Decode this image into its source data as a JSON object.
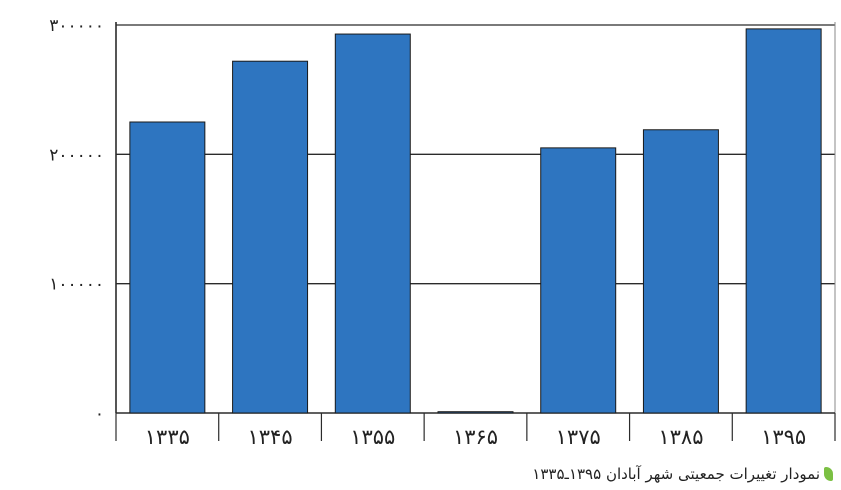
{
  "chart_data": {
    "type": "bar",
    "categories": [
      "۱۳۳۵",
      "۱۳۴۵",
      "۱۳۵۵",
      "۱۳۶۵",
      "۱۳۷۵",
      "۱۳۸۵",
      "۱۳۹۵"
    ],
    "values": [
      225000,
      272000,
      293000,
      1000,
      205000,
      219000,
      297000
    ],
    "yticks": [
      0,
      100000,
      200000,
      300000
    ],
    "ytick_labels": [
      "۰",
      "۱۰۰۰۰۰",
      "۲۰۰۰۰۰",
      "۳۰۰۰۰۰"
    ],
    "ylim": [
      0,
      300000
    ],
    "grid": true,
    "bar_color": "#2e75c0",
    "title": "",
    "xlabel": "",
    "ylabel": ""
  },
  "caption": {
    "text": "نمودار تغییرات جمعیتی شهر آبادان ۱۳۹۵ـ۱۳۳۵",
    "icon": "leaf-icon",
    "icon_color": "#7bc043"
  }
}
